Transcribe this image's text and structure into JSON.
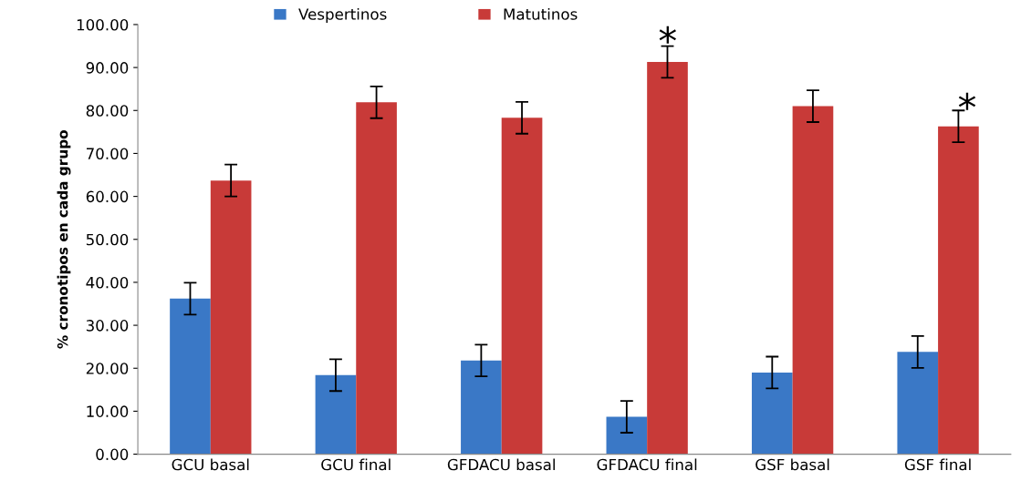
{
  "chart_data": {
    "type": "bar",
    "ylabel": "% cronotipos en cada grupo",
    "categories": [
      "GCU basal",
      "GCU final",
      "GFDACU basal",
      "GFDACU final",
      "GSF basal",
      "GSF final"
    ],
    "series": [
      {
        "name": "Vespertinos",
        "color": "#3a78c6",
        "values": [
          36.2,
          18.4,
          21.8,
          8.7,
          19.0,
          23.8
        ],
        "errors": [
          3.7,
          3.7,
          3.7,
          3.7,
          3.7,
          3.7
        ]
      },
      {
        "name": "Matutinos",
        "color": "#c83a38",
        "values": [
          63.7,
          81.9,
          78.3,
          91.3,
          81.0,
          76.3
        ],
        "errors": [
          3.7,
          3.7,
          3.7,
          3.7,
          3.7,
          3.7
        ]
      }
    ],
    "ylim": [
      0,
      100
    ],
    "yticks": [
      {
        "value": 0,
        "label": "0.00"
      },
      {
        "value": 10,
        "label": "10.00"
      },
      {
        "value": 20,
        "label": "20.00"
      },
      {
        "value": 30,
        "label": "30.00"
      },
      {
        "value": 40,
        "label": "40.00"
      },
      {
        "value": 50,
        "label": "50.00"
      },
      {
        "value": 60,
        "label": "60.00"
      },
      {
        "value": 70,
        "label": "70.00"
      },
      {
        "value": 80,
        "label": "80.00"
      },
      {
        "value": 90,
        "label": "90.00"
      },
      {
        "value": 100,
        "label": "100.00"
      }
    ],
    "annotations": [
      "*",
      "*"
    ],
    "legend": "top",
    "grid": false
  }
}
